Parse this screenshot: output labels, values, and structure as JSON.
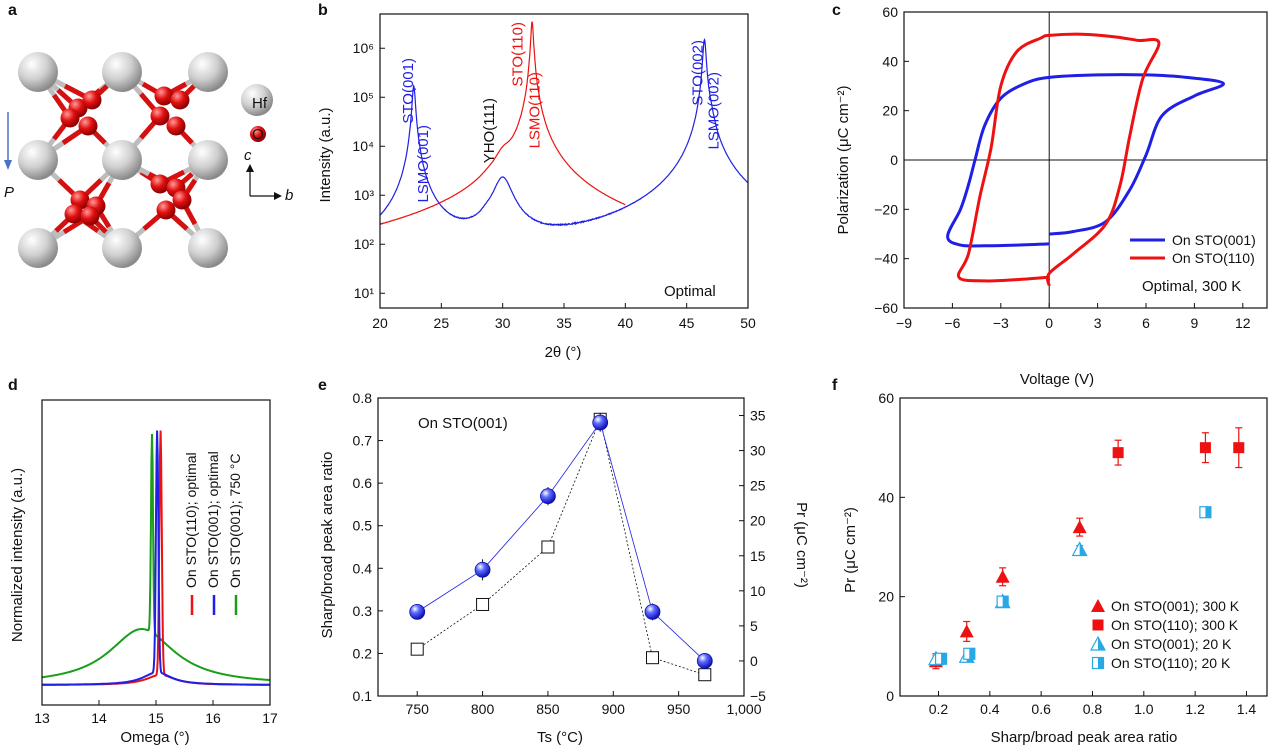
{
  "colors": {
    "blue": "#1f1fe6",
    "red": "#ee1111",
    "green": "#1a9e1a",
    "gray": "#c8c8c8",
    "o_red": "#e21010",
    "light_blue": "#29a8e6"
  },
  "panel_a": {
    "label": "a",
    "legend_hf": "Hf",
    "legend_o": "O",
    "axis_c": "c",
    "axis_b": "b",
    "polar": "P"
  },
  "panel_b": {
    "label": "b",
    "ylabel": "Intensity (a.u.)",
    "xlabel": "2θ (°)",
    "note": "Optimal"
  },
  "panel_c": {
    "label": "c",
    "ylabel": "Polarization (μC cm⁻²)",
    "xlabel": "Voltage (V)",
    "note": "Optimal, 300 K"
  },
  "panel_d": {
    "label": "d",
    "ylabel": "Normalized intensity (a.u.)",
    "xlabel": "Omega (°)"
  },
  "panel_e": {
    "label": "e",
    "ylabel": "Sharp/broad peak area ratio",
    "ylabel2": "Pr (μC cm⁻²)",
    "xlabel": "Ts (°C)",
    "note": "On STO(001)"
  },
  "panel_f": {
    "label": "f",
    "ylabel": "Pr (μC cm⁻²)",
    "xlabel": "Sharp/broad peak area ratio"
  },
  "chart_data": [
    {
      "id": "b",
      "type": "line",
      "x_range": [
        20,
        50
      ],
      "y_scale": "log",
      "y_range": [
        5,
        5000000
      ],
      "x_ticks": [
        20,
        25,
        30,
        35,
        40,
        45,
        50
      ],
      "y_ticks": [
        {
          "v": 10,
          "l": "10¹"
        },
        {
          "v": 100,
          "l": "10²"
        },
        {
          "v": 1000,
          "l": "10³"
        },
        {
          "v": 10000,
          "l": "10⁴"
        },
        {
          "v": 100000,
          "l": "10⁵"
        },
        {
          "v": 1000000,
          "l": "10⁶"
        }
      ],
      "peak_labels": [
        {
          "text": "STO(001)",
          "x": 22.7,
          "color": "blue"
        },
        {
          "text": "LSMO(001)",
          "x": 23.9,
          "color": "blue"
        },
        {
          "text": "YHO(111)",
          "x": 29.3,
          "color": "black"
        },
        {
          "text": "STO(110)",
          "x": 31.6,
          "color": "red"
        },
        {
          "text": "LSMO(110)",
          "x": 33.0,
          "color": "red"
        },
        {
          "text": "STO(002)",
          "x": 46.3,
          "color": "blue"
        },
        {
          "text": "LSMO(002)",
          "x": 47.6,
          "color": "blue"
        }
      ],
      "series": [
        {
          "color": "blue",
          "x_range": [
            20,
            50
          ],
          "baseline": 25,
          "peaks": [
            {
              "x0": 22.75,
              "w": 0.12,
              "h": 170000
            },
            {
              "x0": 23.2,
              "w": 0.2,
              "h": 500
            },
            {
              "x0": 28.7,
              "w": 0.5,
              "h": 60
            },
            {
              "x0": 30.0,
              "w": 0.7,
              "h": 2200
            },
            {
              "x0": 46.45,
              "w": 0.12,
              "h": 1500000
            },
            {
              "x0": 47.0,
              "w": 0.2,
              "h": 12000
            }
          ]
        },
        {
          "color": "red",
          "x_range": [
            20,
            40
          ],
          "baseline": 9,
          "peaks": [
            {
              "x0": 28.7,
              "w": 0.4,
              "h": 120
            },
            {
              "x0": 30.1,
              "w": 0.7,
              "h": 3800
            },
            {
              "x0": 31.5,
              "w": 0.3,
              "h": 450
            },
            {
              "x0": 32.4,
              "w": 0.1,
              "h": 3500000
            },
            {
              "x0": 32.9,
              "w": 0.18,
              "h": 8000
            },
            {
              "x0": 33.3,
              "w": 0.15,
              "h": 500
            },
            {
              "x0": 34.8,
              "w": 0.5,
              "h": 15
            }
          ]
        }
      ]
    },
    {
      "id": "c",
      "type": "line",
      "x_range": [
        -9,
        13.5
      ],
      "y_range": [
        -60,
        60
      ],
      "x_ticks": [
        -9,
        -6,
        -3,
        0,
        3,
        6,
        9,
        12
      ],
      "y_ticks": [
        -60,
        -40,
        -20,
        0,
        20,
        40,
        60
      ],
      "series": [
        {
          "name": "On STO(001)",
          "color": "blue",
          "points": [
            [
              0,
              -34
            ],
            [
              -2,
              -34.5
            ],
            [
              -4,
              -34.8
            ],
            [
              -5.5,
              -34.5
            ],
            [
              -6.3,
              -31
            ],
            [
              -5.5,
              -20
            ],
            [
              -5,
              -10
            ],
            [
              -4.6,
              0
            ],
            [
              -4,
              14
            ],
            [
              -3,
              25
            ],
            [
              -1.5,
              31
            ],
            [
              0,
              33.5
            ],
            [
              3,
              34.5
            ],
            [
              6,
              34.5
            ],
            [
              8.5,
              33.5
            ],
            [
              10.8,
              31
            ],
            [
              9,
              26
            ],
            [
              7,
              18
            ],
            [
              6,
              2
            ],
            [
              5,
              -12
            ],
            [
              3.5,
              -25
            ],
            [
              1.5,
              -29
            ],
            [
              0,
              -30
            ]
          ]
        },
        {
          "name": "On STO(110)",
          "color": "red",
          "points": [
            [
              0,
              -47.5
            ],
            [
              -2,
              -48.5
            ],
            [
              -4,
              -49
            ],
            [
              -5.6,
              -47.5
            ],
            [
              -5,
              -38
            ],
            [
              -4.3,
              -15
            ],
            [
              -3.6,
              5
            ],
            [
              -3,
              30
            ],
            [
              -2,
              44
            ],
            [
              -0.5,
              49.5
            ],
            [
              0,
              50.5
            ],
            [
              2,
              51
            ],
            [
              4,
              50
            ],
            [
              5.5,
              48.5
            ],
            [
              6.8,
              47.5
            ],
            [
              5.8,
              33
            ],
            [
              5,
              10
            ],
            [
              4.4,
              -10
            ],
            [
              3.5,
              -26
            ],
            [
              1.5,
              -38
            ],
            [
              0,
              -46
            ],
            [
              0,
              -51
            ]
          ]
        }
      ]
    },
    {
      "id": "d",
      "type": "line",
      "x_range": [
        13,
        17
      ],
      "y_range": [
        0,
        1.12
      ],
      "x_ticks": [
        13,
        14,
        15,
        16,
        17
      ],
      "series": [
        {
          "name": "On STO(110); optimal",
          "color": "red",
          "peak": 15.08,
          "sharp_w": 0.03,
          "broad_w": 0.3,
          "broad_h": 0.04
        },
        {
          "name": "On STO(001); optimal",
          "color": "blue",
          "peak": 15.02,
          "sharp_w": 0.03,
          "broad_w": 0.3,
          "broad_h": 0.05
        },
        {
          "name": "On STO(001); 750 °C",
          "color": "green",
          "peak": 14.93,
          "sharp_w": 0.025,
          "broad_w": 0.7,
          "broad_h": 0.22,
          "broad_center": 14.75
        }
      ]
    },
    {
      "id": "e",
      "type": "line",
      "x_range": [
        720,
        1000
      ],
      "y_range": [
        0.1,
        0.8
      ],
      "y2_range": [
        -5,
        37.5
      ],
      "x_ticks": [
        750,
        800,
        850,
        900,
        950,
        1000
      ],
      "x_tick_labels": [
        "750",
        "800",
        "850",
        "900",
        "950",
        "1,000"
      ],
      "y_ticks": [
        0.1,
        0.2,
        0.3,
        0.4,
        0.5,
        0.6,
        0.7,
        0.8
      ],
      "y2_ticks": [
        -5,
        0,
        5,
        10,
        15,
        20,
        25,
        30,
        35
      ],
      "series": [
        {
          "axis": "left",
          "marker": "open-square",
          "color": "black",
          "x": [
            750,
            800,
            850,
            890,
            930,
            970
          ],
          "y": [
            0.21,
            0.315,
            0.45,
            0.75,
            0.19,
            0.15
          ]
        },
        {
          "axis": "right",
          "marker": "filled-circle",
          "color": "blue",
          "x": [
            750,
            800,
            850,
            890,
            930,
            970
          ],
          "y": [
            7.0,
            13.0,
            23.5,
            34.0,
            7.0,
            0.0
          ],
          "err": [
            0.4,
            1.5,
            1.3,
            1.3,
            1.2,
            0.4
          ]
        }
      ]
    },
    {
      "id": "f",
      "type": "scatter",
      "x_range": [
        0.05,
        1.48
      ],
      "y_range": [
        0,
        60
      ],
      "x_ticks": [
        0.2,
        0.4,
        0.6,
        0.8,
        1.0,
        1.2,
        1.4
      ],
      "x_tick_labels": [
        "0.2",
        "0.4",
        "0.6",
        "0.8",
        "1.0",
        "1.2",
        "1.4"
      ],
      "y_ticks": [
        0,
        20,
        40,
        60
      ],
      "series": [
        {
          "name": "On STO(001); 300 K",
          "marker": "triangle",
          "color": "red",
          "x": [
            0.19,
            0.31,
            0.45,
            0.75
          ],
          "y": [
            7,
            13,
            24,
            34
          ],
          "err": [
            1.5,
            2.0,
            1.8,
            1.8
          ]
        },
        {
          "name": "On STO(110); 300 K",
          "marker": "square",
          "color": "red",
          "x": [
            0.21,
            0.9,
            1.24,
            1.37
          ],
          "y": [
            7.5,
            49,
            50,
            50
          ],
          "err": [
            1.0,
            2.5,
            3.0,
            4.0
          ]
        },
        {
          "name": "On STO(001); 20 K",
          "marker": "half-triangle",
          "color": "light_blue",
          "x": [
            0.19,
            0.31,
            0.45,
            0.75
          ],
          "y": [
            7.5,
            8,
            19,
            29.5
          ],
          "err": [
            0.6,
            0.6,
            0.8,
            0.8
          ]
        },
        {
          "name": "On STO(110); 20 K",
          "marker": "half-square",
          "color": "light_blue",
          "x": [
            0.21,
            0.32,
            0.45,
            1.24
          ],
          "y": [
            7.5,
            8.5,
            19,
            37
          ],
          "err": [
            0.5,
            0.5,
            0.6,
            1.0
          ]
        }
      ]
    }
  ]
}
